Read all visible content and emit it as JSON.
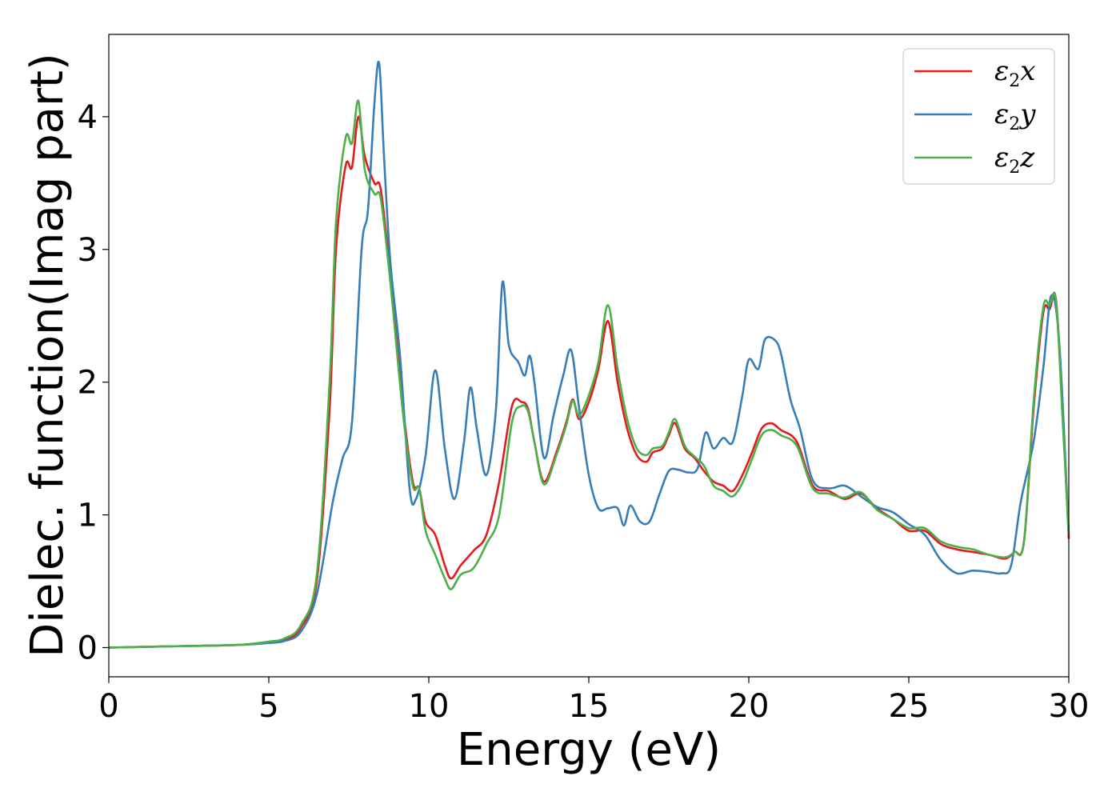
{
  "chart_data": {
    "type": "line",
    "xlabel": "Energy (eV)",
    "ylabel": "Dielec. function(Imag part)",
    "xlim": [
      0,
      30
    ],
    "ylim": [
      -0.22,
      4.62
    ],
    "xticks": [
      0,
      5,
      10,
      15,
      20,
      25,
      30
    ],
    "yticks": [
      0,
      1,
      2,
      3,
      4
    ],
    "legend_position": "top-right",
    "series": [
      {
        "name": "ε2x",
        "legend_base": "ε",
        "legend_sub": "2",
        "legend_var": "x",
        "color": "#e41a1c",
        "x": [
          0,
          2,
          4,
          5,
          5.5,
          6,
          6.5,
          6.9,
          7.1,
          7.4,
          7.6,
          7.8,
          8.0,
          8.3,
          8.5,
          8.8,
          9.2,
          9.5,
          9.7,
          9.9,
          10.2,
          10.5,
          10.7,
          11.0,
          11.4,
          11.8,
          12.2,
          12.6,
          12.9,
          13.1,
          13.3,
          13.6,
          14.0,
          14.3,
          14.5,
          14.7,
          15.0,
          15.3,
          15.6,
          15.9,
          16.2,
          16.5,
          16.8,
          17.0,
          17.3,
          17.5,
          17.7,
          18.0,
          18.3,
          18.6,
          18.9,
          19.2,
          19.5,
          19.8,
          20.1,
          20.4,
          20.7,
          21.0,
          21.5,
          22.0,
          22.5,
          23.0,
          23.5,
          24.0,
          24.5,
          25.0,
          25.5,
          26.0,
          26.5,
          27.0,
          27.5,
          28.0,
          28.3,
          28.6,
          28.9,
          29.2,
          29.4,
          29.6,
          29.8,
          30.0
        ],
        "values": [
          0,
          0.01,
          0.02,
          0.04,
          0.06,
          0.15,
          0.5,
          1.8,
          3.0,
          3.63,
          3.62,
          4.0,
          3.7,
          3.5,
          3.45,
          2.8,
          1.8,
          1.25,
          1.2,
          0.95,
          0.85,
          0.62,
          0.52,
          0.62,
          0.73,
          0.85,
          1.25,
          1.82,
          1.85,
          1.8,
          1.55,
          1.25,
          1.48,
          1.7,
          1.87,
          1.72,
          1.85,
          2.1,
          2.46,
          2.0,
          1.65,
          1.45,
          1.4,
          1.47,
          1.5,
          1.6,
          1.69,
          1.5,
          1.43,
          1.33,
          1.25,
          1.22,
          1.18,
          1.3,
          1.47,
          1.65,
          1.69,
          1.64,
          1.55,
          1.22,
          1.18,
          1.12,
          1.16,
          1.05,
          0.97,
          0.88,
          0.88,
          0.78,
          0.74,
          0.72,
          0.7,
          0.67,
          0.72,
          0.8,
          1.8,
          2.52,
          2.55,
          2.62,
          1.8,
          0.82
        ]
      },
      {
        "name": "ε2y",
        "legend_base": "ε",
        "legend_sub": "2",
        "legend_var": "y",
        "color": "#377eb8",
        "x": [
          0,
          2,
          4,
          5,
          5.5,
          6,
          6.5,
          7.0,
          7.3,
          7.6,
          7.9,
          8.1,
          8.3,
          8.45,
          8.6,
          8.8,
          9.1,
          9.4,
          9.6,
          9.9,
          10.2,
          10.5,
          10.8,
          11.1,
          11.3,
          11.5,
          11.8,
          12.1,
          12.3,
          12.5,
          12.8,
          13.0,
          13.15,
          13.3,
          13.6,
          13.9,
          14.2,
          14.45,
          14.7,
          15.0,
          15.3,
          15.6,
          15.9,
          16.1,
          16.3,
          16.6,
          16.9,
          17.2,
          17.5,
          17.8,
          18.1,
          18.4,
          18.65,
          18.9,
          19.2,
          19.5,
          19.8,
          20.0,
          20.3,
          20.5,
          20.8,
          21.0,
          21.3,
          21.6,
          22.0,
          22.5,
          23.0,
          23.5,
          24.0,
          24.5,
          25.0,
          25.5,
          26.0,
          26.5,
          27.0,
          27.5,
          27.9,
          28.2,
          28.5,
          28.9,
          29.2,
          29.45,
          29.7,
          30.0
        ],
        "values": [
          0,
          0.01,
          0.02,
          0.035,
          0.05,
          0.12,
          0.4,
          1.1,
          1.42,
          1.7,
          3.0,
          3.3,
          4.1,
          4.4,
          3.7,
          2.9,
          2.2,
          1.2,
          1.12,
          1.45,
          2.09,
          1.5,
          1.12,
          1.55,
          1.96,
          1.65,
          1.3,
          1.8,
          2.75,
          2.28,
          2.15,
          2.05,
          2.2,
          2.0,
          1.43,
          1.75,
          2.05,
          2.24,
          1.8,
          1.3,
          1.05,
          1.05,
          1.05,
          0.92,
          1.07,
          0.95,
          0.95,
          1.15,
          1.33,
          1.34,
          1.32,
          1.35,
          1.62,
          1.5,
          1.58,
          1.55,
          1.9,
          2.17,
          2.1,
          2.32,
          2.32,
          2.22,
          1.87,
          1.65,
          1.26,
          1.2,
          1.22,
          1.14,
          1.06,
          1.02,
          0.93,
          0.85,
          0.66,
          0.56,
          0.58,
          0.57,
          0.56,
          0.62,
          1.1,
          1.55,
          2.1,
          2.65,
          2.3,
          0.85
        ]
      },
      {
        "name": "ε2z",
        "legend_base": "ε",
        "legend_sub": "2",
        "legend_var": "z",
        "color": "#4daf4a",
        "x": [
          0,
          2,
          4,
          5,
          5.5,
          6,
          6.5,
          6.9,
          7.1,
          7.4,
          7.6,
          7.8,
          8.0,
          8.3,
          8.5,
          8.8,
          9.2,
          9.5,
          9.7,
          9.9,
          10.2,
          10.5,
          10.7,
          11.0,
          11.4,
          11.8,
          12.2,
          12.6,
          12.9,
          13.1,
          13.3,
          13.6,
          14.0,
          14.3,
          14.5,
          14.7,
          15.0,
          15.3,
          15.6,
          15.9,
          16.2,
          16.5,
          16.8,
          17.0,
          17.3,
          17.5,
          17.7,
          18.0,
          18.3,
          18.6,
          18.9,
          19.2,
          19.5,
          19.8,
          20.1,
          20.4,
          20.7,
          21.0,
          21.5,
          22.0,
          22.5,
          23.0,
          23.5,
          24.0,
          24.5,
          25.0,
          25.5,
          26.0,
          26.5,
          27.0,
          27.5,
          28.0,
          28.3,
          28.6,
          28.9,
          29.2,
          29.4,
          29.6,
          29.8,
          30.0
        ],
        "values": [
          0,
          0.01,
          0.02,
          0.045,
          0.07,
          0.17,
          0.55,
          2.0,
          3.2,
          3.84,
          3.8,
          4.12,
          3.6,
          3.42,
          3.38,
          2.75,
          1.75,
          1.22,
          1.2,
          0.88,
          0.7,
          0.52,
          0.44,
          0.55,
          0.6,
          0.78,
          1.0,
          1.7,
          1.82,
          1.78,
          1.55,
          1.23,
          1.46,
          1.68,
          1.86,
          1.75,
          1.9,
          2.15,
          2.58,
          2.1,
          1.72,
          1.5,
          1.45,
          1.5,
          1.52,
          1.62,
          1.72,
          1.52,
          1.44,
          1.37,
          1.22,
          1.18,
          1.14,
          1.24,
          1.42,
          1.6,
          1.64,
          1.6,
          1.52,
          1.2,
          1.16,
          1.13,
          1.17,
          1.04,
          0.97,
          0.9,
          0.9,
          0.8,
          0.76,
          0.74,
          0.7,
          0.68,
          0.72,
          0.8,
          1.85,
          2.56,
          2.58,
          2.62,
          1.75,
          0.85
        ]
      }
    ]
  }
}
